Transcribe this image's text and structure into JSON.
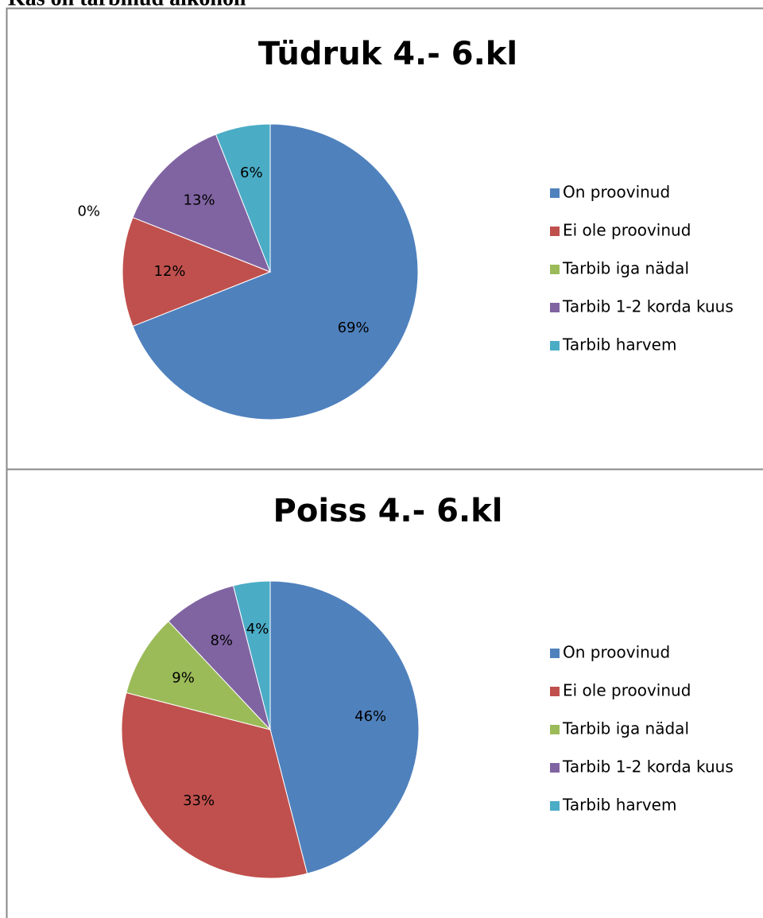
{
  "header": {
    "title": "Kas on tarbinud alkoholi"
  },
  "chart_data": [
    {
      "type": "pie",
      "title": "Tüdruk 4.- 6.kl",
      "categories": [
        "On proovinud",
        "Ei ole proovinud",
        "Tarbib iga nädal",
        "Tarbib 1-2 korda kuus",
        "Tarbib harvem"
      ],
      "values": [
        69,
        12,
        0,
        13,
        6
      ],
      "value_labels": [
        "69%",
        "12%",
        "0%",
        "13%",
        "6%"
      ],
      "colors": [
        "#4f81bd",
        "#c0504d",
        "#9bbb59",
        "#8064a2",
        "#4bacc6"
      ],
      "legend": "right"
    },
    {
      "type": "pie",
      "title": "Poiss 4.- 6.kl",
      "categories": [
        "On proovinud",
        "Ei ole proovinud",
        "Tarbib iga nädal",
        "Tarbib 1-2 korda kuus",
        "Tarbib harvem"
      ],
      "values": [
        46,
        33,
        9,
        8,
        4
      ],
      "value_labels": [
        "46%",
        "33%",
        "9%",
        "8%",
        "4%"
      ],
      "colors": [
        "#4f81bd",
        "#c0504d",
        "#9bbb59",
        "#8064a2",
        "#4bacc6"
      ],
      "legend": "right"
    }
  ]
}
